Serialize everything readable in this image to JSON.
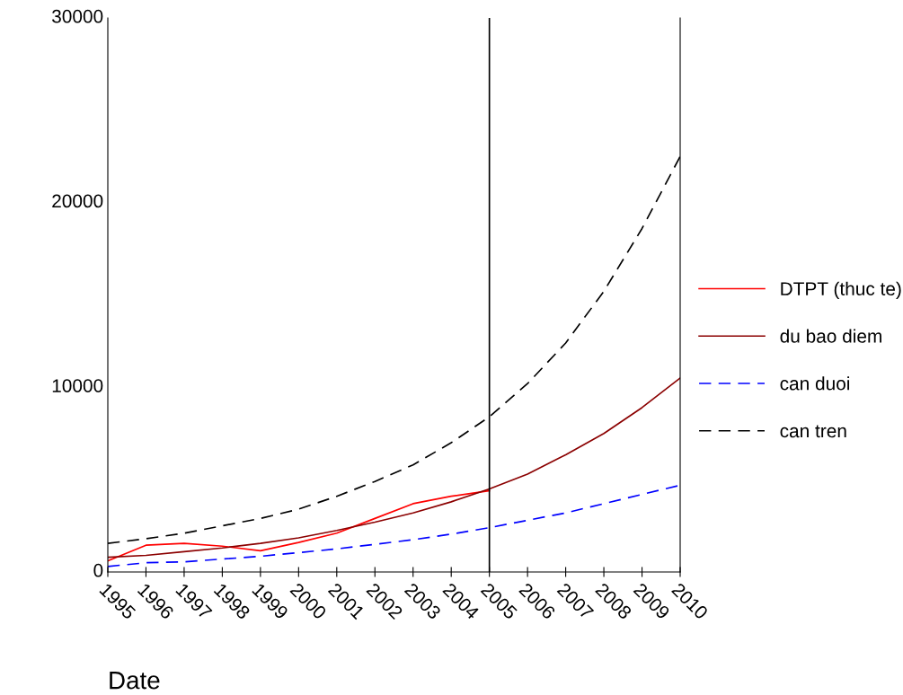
{
  "chart_data": {
    "type": "line",
    "xlabel": "Date",
    "x": [
      1995,
      1996,
      1997,
      1998,
      1999,
      2000,
      2001,
      2002,
      2003,
      2004,
      2005,
      2006,
      2007,
      2008,
      2009,
      2010
    ],
    "series": [
      {
        "name": "DTPT (thuc te)",
        "color": "#ff0000",
        "line_style": "solid",
        "values": [
          600,
          1450,
          1550,
          1400,
          1150,
          1600,
          2100,
          2900,
          3700,
          4100,
          4400,
          null,
          null,
          null,
          null,
          null
        ]
      },
      {
        "name": "du bao diem",
        "color": "#8b0000",
        "line_style": "solid",
        "values": [
          800,
          900,
          1100,
          1300,
          1550,
          1850,
          2250,
          2700,
          3200,
          3800,
          4500,
          5300,
          6350,
          7500,
          8900,
          10500
        ]
      },
      {
        "name": "can duoi",
        "color": "#0000ff",
        "line_style": "dashed",
        "values": [
          300,
          500,
          550,
          700,
          850,
          1050,
          1250,
          1500,
          1750,
          2050,
          2400,
          2800,
          3200,
          3700,
          4200,
          4700
        ]
      },
      {
        "name": "can tren",
        "color": "#000000",
        "line_style": "dashed",
        "values": [
          1550,
          1800,
          2100,
          2500,
          2900,
          3400,
          4100,
          4900,
          5800,
          7000,
          8400,
          10200,
          12400,
          15200,
          18600,
          22500
        ]
      }
    ],
    "xlim": [
      1995,
      2010
    ],
    "xticks": [
      1995,
      1996,
      1997,
      1998,
      1999,
      2000,
      2001,
      2002,
      2003,
      2004,
      2005,
      2006,
      2007,
      2008,
      2009,
      2010
    ],
    "ylim": [
      0,
      30000
    ],
    "yticks": [
      0,
      10000,
      20000,
      30000
    ],
    "ref_lines": [
      {
        "axis": "x",
        "value": 2005,
        "color": "#000000",
        "line_style": "solid"
      }
    ],
    "grid": false,
    "legend": "right",
    "marker": "none"
  }
}
